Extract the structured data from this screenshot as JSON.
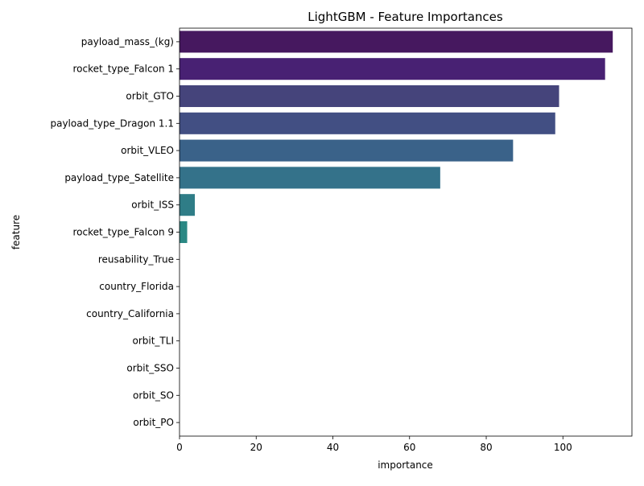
{
  "chart_data": {
    "type": "bar",
    "orientation": "horizontal",
    "title": "LightGBM - Feature Importances",
    "xlabel": "importance",
    "ylabel": "feature",
    "xlim": [
      0,
      118
    ],
    "xticks": [
      0,
      20,
      40,
      60,
      80,
      100
    ],
    "grid": false,
    "categories": [
      "payload_mass_(kg)",
      "rocket_type_Falcon 1",
      "orbit_GTO",
      "payload_type_Dragon 1.1",
      "orbit_VLEO",
      "payload_type_Satellite",
      "orbit_ISS",
      "rocket_type_Falcon 9",
      "reusability_True",
      "country_Florida",
      "country_California",
      "orbit_TLI",
      "orbit_SSO",
      "orbit_SO",
      "orbit_PO"
    ],
    "values": [
      113,
      111,
      99,
      98,
      87,
      68,
      4,
      2,
      0,
      0,
      0,
      0,
      0,
      0,
      0
    ],
    "colors": [
      "#46185f",
      "#482173",
      "#45447b",
      "#424f83",
      "#3a6289",
      "#34728a",
      "#2f7d87",
      "#2a8884",
      "#26938a",
      "#22a386",
      "#2db27d",
      "#4ac16d",
      "#73d056",
      "#a0da39",
      "#d0e11c"
    ]
  }
}
